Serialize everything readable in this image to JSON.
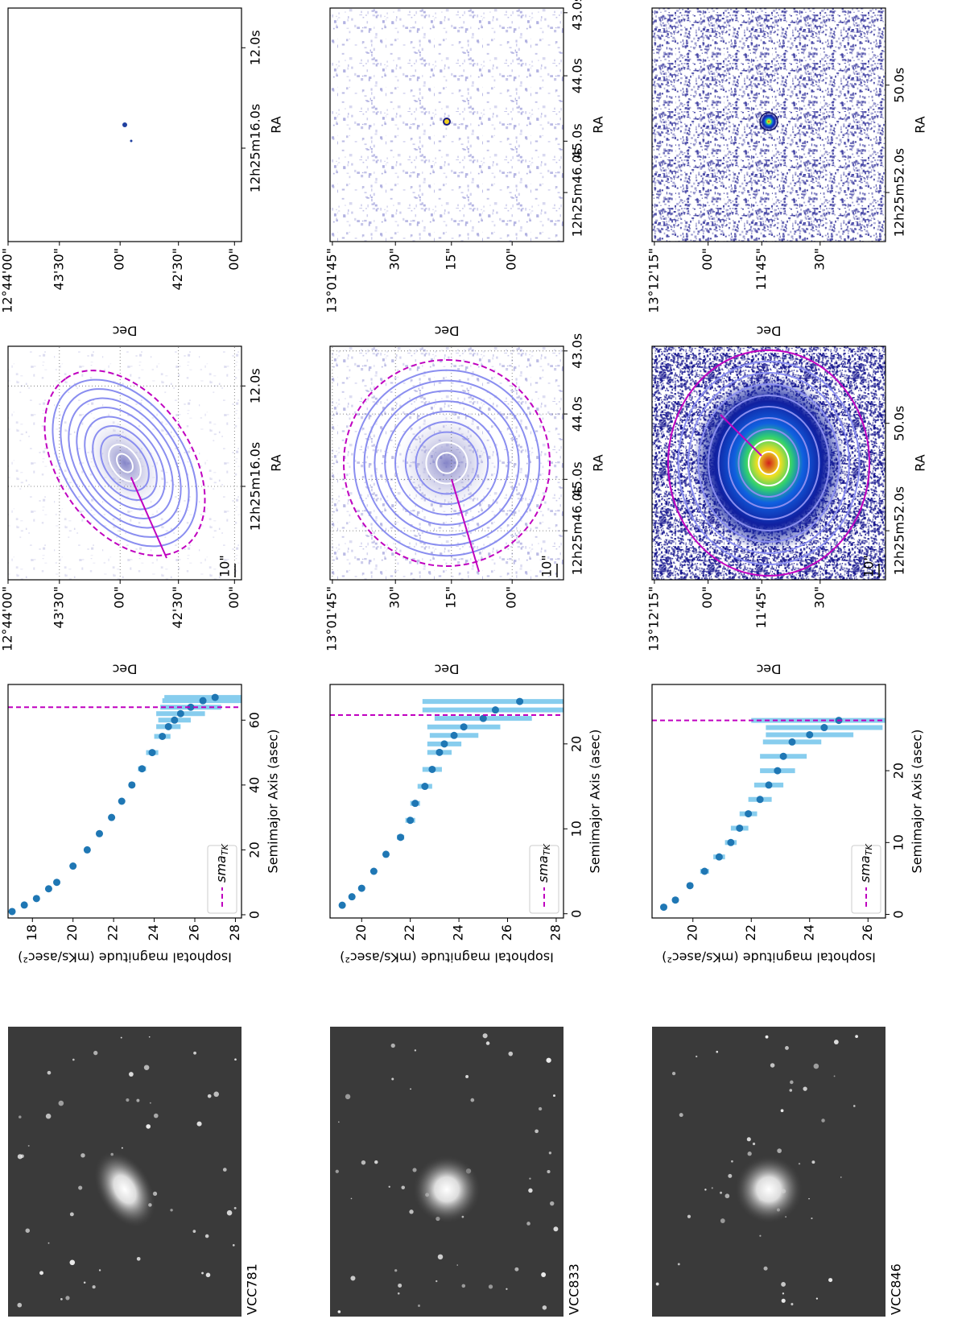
{
  "chart_data": [
    {
      "type": "scatter",
      "color": "#1f77b4",
      "error_color": "#87cdee",
      "x": [
        1,
        3,
        5,
        8,
        10,
        15,
        20,
        25,
        30,
        35,
        40,
        45,
        50,
        55,
        58,
        60,
        62,
        64,
        66,
        67
      ],
      "values": [
        17.0,
        17.6,
        18.2,
        18.8,
        19.2,
        20.0,
        20.7,
        21.3,
        21.9,
        22.4,
        22.9,
        23.4,
        23.9,
        24.4,
        24.7,
        25.0,
        25.3,
        25.8,
        26.4,
        27.0
      ],
      "errors": [
        0.05,
        0.05,
        0.05,
        0.05,
        0.05,
        0.05,
        0.05,
        0.1,
        0.1,
        0.1,
        0.15,
        0.2,
        0.3,
        0.4,
        0.6,
        0.8,
        1.2,
        1.5,
        2.0,
        2.5
      ],
      "xlim": [
        -1,
        71
      ],
      "xticks": [
        0,
        20,
        40,
        60
      ],
      "ylim": [
        28.3,
        16.8
      ],
      "yticks": [
        18,
        20,
        22,
        24,
        26,
        28
      ],
      "xlabel": "Semimajor Axis (asec)",
      "ylabel": "Isophotal magnitude (mKs/asec²)",
      "reference_line": {
        "value": 64,
        "name": "sma",
        "subscript": "TK",
        "color": "#c000c0"
      },
      "legend": "lower left"
    },
    {
      "type": "scatter",
      "color": "#1f77b4",
      "error_color": "#87cdee",
      "x": [
        1,
        2,
        3,
        5,
        7,
        9,
        11,
        13,
        15,
        17,
        19,
        20,
        21,
        22,
        23,
        24,
        25
      ],
      "values": [
        19.2,
        19.6,
        20.0,
        20.5,
        21.0,
        21.6,
        22.0,
        22.2,
        22.6,
        22.9,
        23.2,
        23.4,
        23.8,
        24.2,
        25.0,
        25.5,
        26.5
      ],
      "errors": [
        0.05,
        0.05,
        0.1,
        0.1,
        0.1,
        0.15,
        0.2,
        0.2,
        0.3,
        0.4,
        0.5,
        0.7,
        1.0,
        1.5,
        2.0,
        3.0,
        4.0
      ],
      "xlim": [
        -0.5,
        27
      ],
      "xticks": [
        0,
        10,
        20
      ],
      "ylim": [
        28.3,
        18.7
      ],
      "yticks": [
        20,
        22,
        24,
        26,
        28
      ],
      "xlabel": "Semimajor Axis (asec)",
      "ylabel": "Isophotal magnitude (mKs/asec²)",
      "reference_line": {
        "value": 23.4,
        "name": "sma",
        "subscript": "TK",
        "color": "#c000c0"
      },
      "legend": "lower left"
    },
    {
      "type": "scatter",
      "color": "#1f77b4",
      "error_color": "#87cdee",
      "x": [
        1,
        2,
        4,
        6,
        8,
        10,
        12,
        14,
        16,
        18,
        20,
        22,
        24,
        25,
        26,
        27
      ],
      "values": [
        19.0,
        19.4,
        19.9,
        20.4,
        20.9,
        21.3,
        21.6,
        21.9,
        22.3,
        22.6,
        22.9,
        23.1,
        23.4,
        24.0,
        24.5,
        25.0
      ],
      "errors": [
        0.1,
        0.1,
        0.1,
        0.15,
        0.2,
        0.2,
        0.3,
        0.3,
        0.4,
        0.5,
        0.6,
        0.8,
        1.0,
        1.5,
        2.0,
        3.0
      ],
      "xlim": [
        -0.5,
        32
      ],
      "xticks": [
        0,
        10,
        20
      ],
      "ylim": [
        26.6,
        18.6
      ],
      "yticks": [
        20,
        22,
        24,
        26
      ],
      "xlabel": "Semimajor Axis (asec)",
      "ylabel": "Isophotal magnitude (mKs/asec²)",
      "reference_line": {
        "value": 27,
        "name": "sma",
        "subscript": "TK",
        "color": "#c000c0"
      },
      "legend": "lower left"
    }
  ],
  "panels": [
    {
      "galaxy": "VCC781",
      "dec_label": "Dec",
      "ra_label": "RA",
      "scale_bar": "10\"",
      "dec_ticks": [
        "12°44'00\"",
        "43'30\"",
        "00\"",
        "42'30\"",
        "00\""
      ],
      "ra_ticks": [
        "12h25m16.0s",
        "12.0s"
      ]
    },
    {
      "galaxy": "VCC833",
      "dec_label": "Dec",
      "ra_label": "RA",
      "scale_bar": "10\"",
      "dec_ticks": [
        "13°01'45\"",
        "30\"",
        "15\"",
        "00\""
      ],
      "ra_ticks": [
        "12h25m46.0s",
        "45.0s",
        "44.0s",
        "43.0s"
      ]
    },
    {
      "galaxy": "VCC846",
      "dec_label": "Dec",
      "ra_label": "RA",
      "scale_bar": "10\"",
      "dec_ticks": [
        "13°12'15\"",
        "00\"",
        "11'45\"",
        "30\""
      ],
      "ra_ticks": [
        "12h25m52.0s",
        "50.0s"
      ]
    }
  ]
}
